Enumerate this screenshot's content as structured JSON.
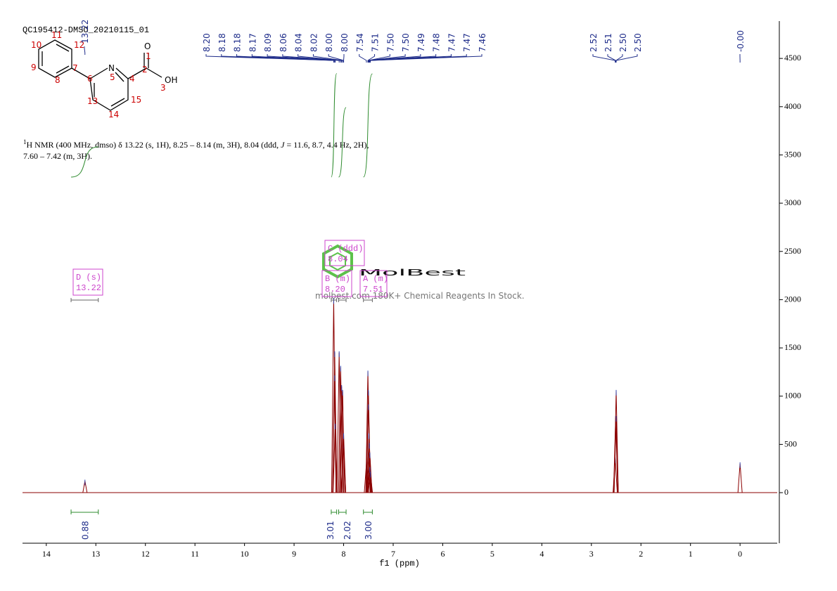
{
  "chart_data": {
    "type": "nmr",
    "title": "QC195412-DMSO_20210115_01",
    "description": {
      "sup": "1",
      "part1": "H NMR (400 MHz, dmso) δ 13.22 (s, 1H), 8.25 – 8.14 (m, 3H), 8.04 (ddd, ",
      "italic": "J",
      "part2": " = 11.6, 8.7, 4.4 Hz, 2H),",
      "line2": "7.60 – 7.42 (m, 3H)."
    },
    "x_label": "f1 (ppm)",
    "xlim": [
      14.48,
      -0.75
    ],
    "xticks": [
      14,
      13,
      12,
      11,
      10,
      9,
      8,
      7,
      6,
      5,
      4,
      3,
      2,
      1,
      0
    ],
    "ylim": [
      -524,
      4887
    ],
    "yticks": [
      0,
      500,
      1000,
      1500,
      2000,
      2500,
      3000,
      3500,
      4000,
      4500
    ],
    "spectrum_color": "#8b0000",
    "label_color": "#1f2d8a",
    "integral_color": "#2e8b2e",
    "box_color": "#cc44cc",
    "peaks": {
      "x": [
        13.22,
        8.2,
        8.18,
        8.18,
        8.17,
        8.09,
        8.06,
        8.04,
        8.02,
        8.0,
        8.0,
        7.54,
        7.51,
        7.5,
        7.5,
        7.49,
        7.48,
        7.47,
        7.47,
        7.46,
        2.52,
        2.51,
        2.5,
        2.5,
        0.0
      ],
      "x_labels": [
        "13.22",
        "8.20",
        "8.18",
        "8.18",
        "8.17",
        "8.09",
        "8.06",
        "8.04",
        "8.02",
        "8.00",
        "8.00",
        "7.54",
        "7.51",
        "7.50",
        "7.50",
        "7.49",
        "7.48",
        "7.47",
        "7.47",
        "7.46",
        "2.52",
        "2.51",
        "2.50",
        "2.50",
        "-0.00"
      ],
      "values": [
        120,
        2000,
        1450,
        1200,
        700,
        1450,
        1300,
        1100,
        1050,
        500,
        600,
        300,
        1250,
        1050,
        900,
        600,
        500,
        400,
        250,
        200,
        350,
        780,
        1050,
        780,
        300
      ]
    },
    "integrals": {
      "ranges": [
        [
          13.5,
          12.95
        ],
        [
          8.25,
          8.14
        ],
        [
          8.1,
          7.95
        ],
        [
          7.6,
          7.42
        ]
      ],
      "values": [
        0.88,
        3.01,
        2.02,
        3.0
      ],
      "value_labels": [
        "0.88",
        "3.01",
        "2.02",
        "3.00"
      ]
    },
    "multiplets": [
      {
        "label": "D (s)",
        "shift": "13.22",
        "range": [
          13.5,
          12.95
        ]
      },
      {
        "label": "C (ddd)",
        "shift": "8.04",
        "range": [
          8.1,
          7.95
        ]
      },
      {
        "label": "B (m)",
        "shift": "8.20",
        "range": [
          8.25,
          8.14
        ]
      },
      {
        "label": "A (m)",
        "shift": "7.51",
        "range": [
          7.6,
          7.42
        ]
      }
    ],
    "molecule": {
      "atoms": [
        "O",
        "1",
        "2",
        "OH",
        "3",
        "N",
        "5",
        "4",
        "15",
        "14",
        "13",
        "6",
        "7",
        "8",
        "9",
        "10",
        "11",
        "12"
      ]
    },
    "watermark": {
      "brand": "MolBest",
      "tagline": "molbest.com 180K+ Chemical Reagents In Stock."
    }
  }
}
